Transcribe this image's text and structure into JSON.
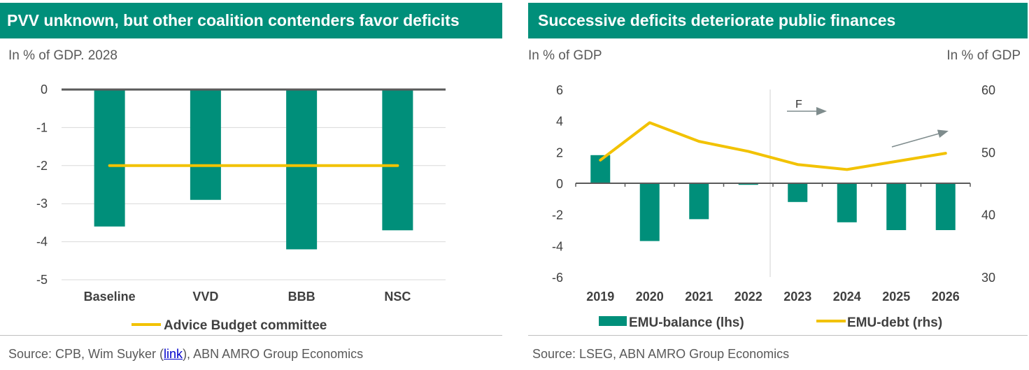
{
  "left_panel": {
    "title": "PVV unknown, but other coalition contenders favor deficits",
    "unit": "In % of GDP. 2028",
    "source_prefix": "Source:  CPB, Wim Suyker (",
    "source_link": "link",
    "source_suffix": "), ABN AMRO Group Economics"
  },
  "right_panel": {
    "title": "Successive deficits deteriorate public finances",
    "unit_left": "In % of GDP",
    "unit_right": "In % of GDP",
    "forecast_label": "F",
    "source": "Source: LSEG, ABN AMRO Group Economics"
  },
  "colors": {
    "teal": "#008f7a",
    "yellow": "#f2c200",
    "axis": "#5a5a5a",
    "grid": "#d9d9d9",
    "arrow": "#7f8c8d"
  },
  "chart_data": [
    {
      "type": "bar",
      "title": "PVV unknown, but other coalition contenders favor deficits",
      "categories": [
        "Baseline",
        "VVD",
        "BBB",
        "NSC"
      ],
      "ylim": [
        -5,
        0
      ],
      "yticks": [
        0,
        -1,
        -2,
        -3,
        -4,
        -5
      ],
      "grid": true,
      "series": [
        {
          "values": [
            -3.6,
            -2.9,
            -4.2,
            -3.7
          ],
          "color": "#008f7a"
        },
        {
          "name": "Advice Budget committee",
          "kind": "line",
          "values": [
            -2,
            -2,
            -2,
            -2
          ],
          "color": "#f2c200"
        }
      ],
      "legend": "bottom"
    },
    {
      "type": "bar",
      "title": "Successive deficits deteriorate public finances",
      "categories": [
        "2019",
        "2020",
        "2021",
        "2022",
        "2023",
        "2024",
        "2025",
        "2026"
      ],
      "ylim": [
        -6,
        6
      ],
      "yticks": [
        6,
        4,
        2,
        0,
        -2,
        -4,
        -6
      ],
      "y2lim": [
        30,
        60
      ],
      "y2ticks": [
        60,
        50,
        40,
        30
      ],
      "forecast_start": "2023",
      "series": [
        {
          "name": "EMU-balance (lhs)",
          "kind": "bar",
          "axis": "left",
          "values": [
            1.8,
            -3.7,
            -2.3,
            -0.1,
            -1.2,
            -2.5,
            -3.0,
            -3.0
          ],
          "color": "#008f7a"
        },
        {
          "name": "EMU-debt (rhs)",
          "kind": "line",
          "axis": "right",
          "values": [
            48.7,
            54.7,
            51.7,
            50.1,
            48.0,
            47.2,
            48.5,
            49.8
          ],
          "color": "#f2c200"
        }
      ],
      "legend": "bottom"
    }
  ]
}
